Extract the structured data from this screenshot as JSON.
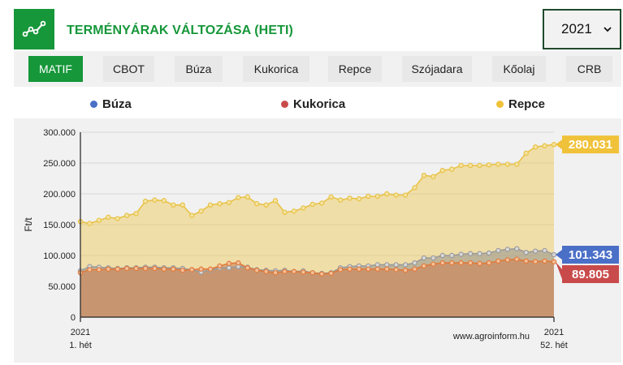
{
  "header": {
    "title": "TERMÉNYÁRAK VÁLTOZÁSA (HETI)",
    "logo_icon": "trend-line-icon",
    "year_selected": "2021"
  },
  "tabs": [
    {
      "label": "MATIF",
      "active": true
    },
    {
      "label": "CBOT",
      "active": false
    },
    {
      "label": "Búza",
      "active": false
    },
    {
      "label": "Kukorica",
      "active": false
    },
    {
      "label": "Repce",
      "active": false
    },
    {
      "label": "Szójadara",
      "active": false
    },
    {
      "label": "Kőolaj",
      "active": false
    },
    {
      "label": "CRB",
      "active": false
    }
  ],
  "colors": {
    "brand": "#16973a",
    "buza": "#4a6fc7",
    "kukorica": "#c94a4a",
    "repce": "#f0c23a"
  },
  "chart_data": {
    "type": "area",
    "ylabel": "Ft/t",
    "ylim": [
      0,
      300000
    ],
    "y_ticks": [
      "0",
      "50.000",
      "100.000",
      "150.000",
      "200.000",
      "250.000",
      "300.000"
    ],
    "x_start_label": [
      "2021",
      "1. hét"
    ],
    "x_end_label": [
      "2021",
      "52. hét"
    ],
    "watermark": "www.agroinform.hu",
    "legend_position": "top",
    "grid": true,
    "series": [
      {
        "name": "Búza",
        "last_label": "101.343",
        "values": [
          75000,
          82000,
          81000,
          80000,
          79000,
          80000,
          80000,
          81000,
          81000,
          80000,
          80000,
          79000,
          77000,
          73000,
          76000,
          80000,
          80000,
          82000,
          81000,
          77000,
          76000,
          75000,
          76000,
          74000,
          75000,
          72000,
          71000,
          72000,
          80000,
          82000,
          83000,
          83000,
          85000,
          85000,
          85000,
          85000,
          88000,
          96000,
          96000,
          100000,
          100000,
          102000,
          103000,
          103000,
          104000,
          108000,
          110000,
          111000,
          105000,
          107000,
          108000,
          101343
        ]
      },
      {
        "name": "Kukorica",
        "last_label": "89.805",
        "values": [
          72000,
          77000,
          77000,
          78000,
          78000,
          79000,
          79000,
          79000,
          79000,
          78000,
          78000,
          76000,
          77000,
          78000,
          78000,
          83000,
          87000,
          88000,
          80000,
          76000,
          74000,
          72000,
          74000,
          74000,
          73000,
          72000,
          70000,
          71000,
          77000,
          78000,
          78000,
          78000,
          78000,
          78000,
          77000,
          76000,
          78000,
          83000,
          86000,
          88000,
          88000,
          88000,
          88000,
          87000,
          88000,
          91000,
          93000,
          94000,
          91000,
          90000,
          91000,
          89805
        ]
      },
      {
        "name": "Repce",
        "last_label": "280.031",
        "values": [
          155000,
          152000,
          157000,
          162000,
          160000,
          165000,
          168000,
          188000,
          190000,
          189000,
          182000,
          182000,
          165000,
          172000,
          182000,
          184000,
          186000,
          194000,
          195000,
          184000,
          182000,
          189000,
          170000,
          172000,
          177000,
          183000,
          185000,
          195000,
          190000,
          193000,
          192000,
          196000,
          196000,
          200000,
          198000,
          198000,
          210000,
          230000,
          228000,
          238000,
          240000,
          246000,
          246000,
          246000,
          247000,
          248000,
          248000,
          248000,
          266000,
          276000,
          278000,
          280031
        ]
      }
    ]
  }
}
